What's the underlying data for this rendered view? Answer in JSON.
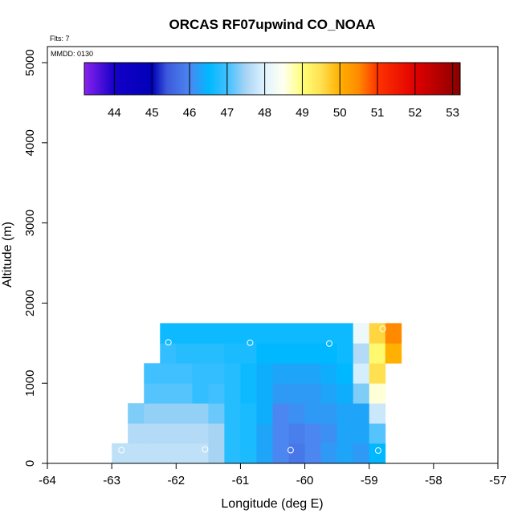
{
  "chart_data": {
    "type": "heatmap",
    "title": "ORCAS RF07upwind CO_NOAA",
    "flights_note": "Flts: 7",
    "date_note": "MMDD: 0130",
    "xlabel": "Longitude (deg E)",
    "ylabel": "Altitude (m)",
    "xlim": [
      -64,
      -57
    ],
    "ylim": [
      0,
      5200
    ],
    "x_ticks": [
      "-64",
      "-63",
      "-62",
      "-61",
      "-60",
      "-59",
      "-58",
      "-57"
    ],
    "y_ticks": [
      "0",
      "1000",
      "2000",
      "3000",
      "4000",
      "5000"
    ],
    "colorbar": {
      "range": [
        43.2,
        53.2
      ],
      "tick_values": [
        "44",
        "45",
        "46",
        "47",
        "48",
        "49",
        "50",
        "51",
        "52",
        "53"
      ],
      "stops": [
        [
          43.2,
          "#8b22ee"
        ],
        [
          44.0,
          "#1500c8"
        ],
        [
          45.0,
          "#0000b8"
        ],
        [
          45.4,
          "#3c5adc"
        ],
        [
          46.0,
          "#4c86f0"
        ],
        [
          46.5,
          "#00b8ff"
        ],
        [
          47.0,
          "#40c0ff"
        ],
        [
          47.5,
          "#a8d4f4"
        ],
        [
          48.0,
          "#e0f4ff"
        ],
        [
          48.5,
          "#fffff0"
        ],
        [
          49.0,
          "#ffff78"
        ],
        [
          49.5,
          "#ffe050"
        ],
        [
          50.0,
          "#ffb000"
        ],
        [
          50.5,
          "#ff8a00"
        ],
        [
          51.0,
          "#ff3300"
        ],
        [
          52.0,
          "#e00000"
        ],
        [
          53.2,
          "#8b0000"
        ]
      ]
    },
    "cell_width_deg": 0.25,
    "cell_height_m": 250,
    "cells": [
      {
        "lon": -63.0,
        "alt": 0,
        "value": 47.7
      },
      {
        "lon": -62.75,
        "alt": 0,
        "value": 47.7
      },
      {
        "lon": -62.5,
        "alt": 0,
        "value": 47.7
      },
      {
        "lon": -62.25,
        "alt": 0,
        "value": 47.7
      },
      {
        "lon": -62.0,
        "alt": 0,
        "value": 47.7
      },
      {
        "lon": -61.75,
        "alt": 0,
        "value": 47.7
      },
      {
        "lon": -61.5,
        "alt": 0,
        "value": 47.5
      },
      {
        "lon": -61.25,
        "alt": 0,
        "value": 46.8
      },
      {
        "lon": -61.0,
        "alt": 0,
        "value": 46.7
      },
      {
        "lon": -60.75,
        "alt": 0,
        "value": 46.3
      },
      {
        "lon": -60.5,
        "alt": 0,
        "value": 46.0
      },
      {
        "lon": -60.25,
        "alt": 0,
        "value": 45.8
      },
      {
        "lon": -60.0,
        "alt": 0,
        "value": 46.0
      },
      {
        "lon": -59.75,
        "alt": 0,
        "value": 46.2
      },
      {
        "lon": -59.5,
        "alt": 0,
        "value": 46.3
      },
      {
        "lon": -59.25,
        "alt": 0,
        "value": 46.2
      },
      {
        "lon": -59.0,
        "alt": 0,
        "value": 46.5
      },
      {
        "lon": -62.75,
        "alt": 250,
        "value": 47.6
      },
      {
        "lon": -62.5,
        "alt": 250,
        "value": 47.6
      },
      {
        "lon": -62.25,
        "alt": 250,
        "value": 47.6
      },
      {
        "lon": -62.0,
        "alt": 250,
        "value": 47.6
      },
      {
        "lon": -61.75,
        "alt": 250,
        "value": 47.6
      },
      {
        "lon": -61.5,
        "alt": 250,
        "value": 47.5
      },
      {
        "lon": -61.25,
        "alt": 250,
        "value": 46.8
      },
      {
        "lon": -61.0,
        "alt": 250,
        "value": 46.7
      },
      {
        "lon": -60.75,
        "alt": 250,
        "value": 46.3
      },
      {
        "lon": -60.5,
        "alt": 250,
        "value": 46.0
      },
      {
        "lon": -60.25,
        "alt": 250,
        "value": 45.9
      },
      {
        "lon": -60.0,
        "alt": 250,
        "value": 46.0
      },
      {
        "lon": -59.75,
        "alt": 250,
        "value": 46.1
      },
      {
        "lon": -59.5,
        "alt": 250,
        "value": 46.3
      },
      {
        "lon": -59.25,
        "alt": 250,
        "value": 46.3
      },
      {
        "lon": -59.0,
        "alt": 250,
        "value": 47.1
      },
      {
        "lon": -62.75,
        "alt": 500,
        "value": 47.3
      },
      {
        "lon": -62.5,
        "alt": 500,
        "value": 47.4
      },
      {
        "lon": -62.25,
        "alt": 500,
        "value": 47.4
      },
      {
        "lon": -62.0,
        "alt": 500,
        "value": 47.4
      },
      {
        "lon": -61.75,
        "alt": 500,
        "value": 47.4
      },
      {
        "lon": -61.5,
        "alt": 500,
        "value": 47.2
      },
      {
        "lon": -61.25,
        "alt": 500,
        "value": 46.8
      },
      {
        "lon": -61.0,
        "alt": 500,
        "value": 46.7
      },
      {
        "lon": -60.75,
        "alt": 500,
        "value": 46.4
      },
      {
        "lon": -60.5,
        "alt": 500,
        "value": 46.0
      },
      {
        "lon": -60.25,
        "alt": 500,
        "value": 46.1
      },
      {
        "lon": -60.0,
        "alt": 500,
        "value": 46.2
      },
      {
        "lon": -59.75,
        "alt": 500,
        "value": 46.2
      },
      {
        "lon": -59.5,
        "alt": 500,
        "value": 46.3
      },
      {
        "lon": -59.25,
        "alt": 500,
        "value": 46.3
      },
      {
        "lon": -59.0,
        "alt": 500,
        "value": 47.8
      },
      {
        "lon": -62.5,
        "alt": 750,
        "value": 47.1
      },
      {
        "lon": -62.25,
        "alt": 750,
        "value": 47.1
      },
      {
        "lon": -62.0,
        "alt": 750,
        "value": 47.1
      },
      {
        "lon": -61.75,
        "alt": 750,
        "value": 46.9
      },
      {
        "lon": -61.5,
        "alt": 750,
        "value": 47.0
      },
      {
        "lon": -61.25,
        "alt": 750,
        "value": 46.8
      },
      {
        "lon": -61.0,
        "alt": 750,
        "value": 46.6
      },
      {
        "lon": -60.75,
        "alt": 750,
        "value": 46.4
      },
      {
        "lon": -60.5,
        "alt": 750,
        "value": 46.2
      },
      {
        "lon": -60.25,
        "alt": 750,
        "value": 46.2
      },
      {
        "lon": -60.0,
        "alt": 750,
        "value": 46.2
      },
      {
        "lon": -59.75,
        "alt": 750,
        "value": 46.3
      },
      {
        "lon": -59.5,
        "alt": 750,
        "value": 46.4
      },
      {
        "lon": -59.25,
        "alt": 750,
        "value": 47.3
      },
      {
        "lon": -59.0,
        "alt": 750,
        "value": 48.6
      },
      {
        "lon": -62.5,
        "alt": 1000,
        "value": 47.0
      },
      {
        "lon": -62.25,
        "alt": 1000,
        "value": 47.0
      },
      {
        "lon": -62.0,
        "alt": 1000,
        "value": 47.0
      },
      {
        "lon": -61.75,
        "alt": 1000,
        "value": 46.9
      },
      {
        "lon": -61.5,
        "alt": 1000,
        "value": 46.9
      },
      {
        "lon": -61.25,
        "alt": 1000,
        "value": 46.8
      },
      {
        "lon": -61.0,
        "alt": 1000,
        "value": 46.6
      },
      {
        "lon": -60.75,
        "alt": 1000,
        "value": 46.4
      },
      {
        "lon": -60.5,
        "alt": 1000,
        "value": 46.3
      },
      {
        "lon": -60.25,
        "alt": 1000,
        "value": 46.3
      },
      {
        "lon": -60.0,
        "alt": 1000,
        "value": 46.3
      },
      {
        "lon": -59.75,
        "alt": 1000,
        "value": 46.4
      },
      {
        "lon": -59.5,
        "alt": 1000,
        "value": 46.5
      },
      {
        "lon": -59.25,
        "alt": 1000,
        "value": 47.9
      },
      {
        "lon": -59.0,
        "alt": 1000,
        "value": 49.5
      },
      {
        "lon": -62.25,
        "alt": 1250,
        "value": 46.9
      },
      {
        "lon": -62.0,
        "alt": 1250,
        "value": 46.8
      },
      {
        "lon": -61.75,
        "alt": 1250,
        "value": 46.8
      },
      {
        "lon": -61.5,
        "alt": 1250,
        "value": 46.8
      },
      {
        "lon": -61.25,
        "alt": 1250,
        "value": 46.7
      },
      {
        "lon": -61.0,
        "alt": 1250,
        "value": 46.7
      },
      {
        "lon": -60.75,
        "alt": 1250,
        "value": 46.5
      },
      {
        "lon": -60.5,
        "alt": 1250,
        "value": 46.5
      },
      {
        "lon": -60.25,
        "alt": 1250,
        "value": 46.5
      },
      {
        "lon": -60.0,
        "alt": 1250,
        "value": 46.5
      },
      {
        "lon": -59.75,
        "alt": 1250,
        "value": 46.5
      },
      {
        "lon": -59.5,
        "alt": 1250,
        "value": 46.6
      },
      {
        "lon": -59.25,
        "alt": 1250,
        "value": 47.6
      },
      {
        "lon": -59.0,
        "alt": 1250,
        "value": 49.1
      },
      {
        "lon": -58.75,
        "alt": 1250,
        "value": 50.0
      },
      {
        "lon": -62.25,
        "alt": 1500,
        "value": 46.6
      },
      {
        "lon": -62.0,
        "alt": 1500,
        "value": 46.6
      },
      {
        "lon": -61.75,
        "alt": 1500,
        "value": 46.6
      },
      {
        "lon": -61.5,
        "alt": 1500,
        "value": 46.6
      },
      {
        "lon": -61.25,
        "alt": 1500,
        "value": 46.6
      },
      {
        "lon": -61.0,
        "alt": 1500,
        "value": 46.6
      },
      {
        "lon": -60.75,
        "alt": 1500,
        "value": 46.6
      },
      {
        "lon": -60.5,
        "alt": 1500,
        "value": 46.6
      },
      {
        "lon": -60.25,
        "alt": 1500,
        "value": 46.6
      },
      {
        "lon": -60.0,
        "alt": 1500,
        "value": 46.6
      },
      {
        "lon": -59.75,
        "alt": 1500,
        "value": 46.6
      },
      {
        "lon": -59.5,
        "alt": 1500,
        "value": 46.6
      },
      {
        "lon": -59.25,
        "alt": 1500,
        "value": 48.2
      },
      {
        "lon": -59.0,
        "alt": 1500,
        "value": 49.6
      },
      {
        "lon": -58.75,
        "alt": 1500,
        "value": 50.5
      }
    ],
    "points": [
      {
        "lon": -62.85,
        "alt": 165
      },
      {
        "lon": -61.55,
        "alt": 175
      },
      {
        "lon": -60.22,
        "alt": 165
      },
      {
        "lon": -58.86,
        "alt": 160
      },
      {
        "lon": -62.12,
        "alt": 1510
      },
      {
        "lon": -60.85,
        "alt": 1505
      },
      {
        "lon": -59.62,
        "alt": 1495
      },
      {
        "lon": -58.79,
        "alt": 1680
      }
    ]
  }
}
